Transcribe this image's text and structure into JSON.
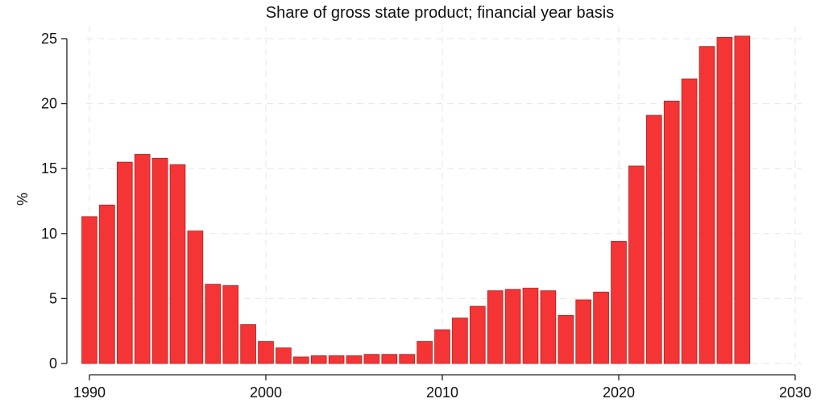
{
  "chart_data": {
    "type": "bar",
    "title": "Share of gross state product; financial year basis",
    "xlabel": "",
    "ylabel": "%",
    "x": [
      1990,
      1991,
      1992,
      1993,
      1994,
      1995,
      1996,
      1997,
      1998,
      1999,
      2000,
      2001,
      2002,
      2003,
      2004,
      2005,
      2006,
      2007,
      2008,
      2009,
      2010,
      2011,
      2012,
      2013,
      2014,
      2015,
      2016,
      2017,
      2018,
      2019,
      2020,
      2021,
      2022,
      2023,
      2024,
      2025,
      2026,
      2027
    ],
    "values": [
      11.3,
      12.2,
      15.5,
      16.1,
      15.8,
      15.3,
      10.2,
      6.1,
      6.0,
      3.0,
      1.7,
      1.2,
      0.5,
      0.6,
      0.6,
      0.6,
      0.7,
      0.7,
      0.7,
      1.7,
      2.6,
      3.5,
      4.4,
      5.6,
      5.7,
      5.8,
      5.6,
      3.7,
      4.9,
      5.5,
      9.4,
      15.2,
      19.1,
      20.2,
      21.9,
      24.4,
      25.1,
      25.2
    ],
    "xlim": [
      1990,
      2030
    ],
    "ylim": [
      0,
      25
    ],
    "x_ticks": [
      "1990",
      "2000",
      "2010",
      "2020",
      "2030"
    ],
    "y_ticks": [
      "0",
      "5",
      "10",
      "15",
      "20",
      "25"
    ],
    "grid": true,
    "bar_color": "#f53535"
  }
}
